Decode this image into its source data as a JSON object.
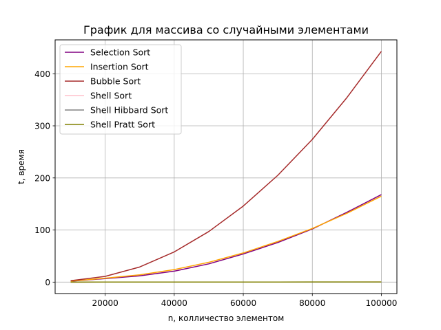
{
  "chart_data": {
    "type": "line",
    "title": "График для массива со случайными элементами",
    "xlabel": "n, колличество элементом",
    "ylabel": "t, время",
    "x": [
      10000,
      20000,
      30000,
      40000,
      50000,
      60000,
      70000,
      80000,
      90000,
      100000
    ],
    "xlim": [
      5500,
      104500
    ],
    "ylim": [
      -22,
      465
    ],
    "xticks": [
      20000,
      40000,
      60000,
      80000,
      100000
    ],
    "yticks": [
      0,
      100,
      200,
      300,
      400
    ],
    "grid": true,
    "legend_position": "upper-left",
    "series": [
      {
        "name": "Selection Sort",
        "color": "#800080",
        "values": [
          1.8,
          6.7,
          12.0,
          21.0,
          35.0,
          54.0,
          76.0,
          102.0,
          134.0,
          168.0
        ]
      },
      {
        "name": "Insertion Sort",
        "color": "#FFA500",
        "values": [
          1.9,
          7.5,
          14.0,
          24.0,
          38.0,
          56.0,
          78.0,
          103.0,
          132.0,
          165.0
        ]
      },
      {
        "name": "Bubble Sort",
        "color": "#A52A2A",
        "values": [
          2.7,
          11.0,
          29.0,
          58.0,
          97.0,
          146.0,
          205.0,
          274.0,
          354.0,
          443.0
        ]
      },
      {
        "name": "Shell Sort",
        "color": "#FFC0CB",
        "values": [
          0.01,
          0.03,
          0.05,
          0.07,
          0.09,
          0.11,
          0.13,
          0.15,
          0.17,
          0.2
        ]
      },
      {
        "name": "Shell Hibbard Sort",
        "color": "#808080",
        "values": [
          0.01,
          0.03,
          0.05,
          0.07,
          0.09,
          0.11,
          0.13,
          0.15,
          0.17,
          0.19
        ]
      },
      {
        "name": "Shell Pratt Sort",
        "color": "#808000",
        "values": [
          0.02,
          0.04,
          0.07,
          0.1,
          0.13,
          0.16,
          0.19,
          0.22,
          0.25,
          0.28
        ]
      }
    ]
  }
}
